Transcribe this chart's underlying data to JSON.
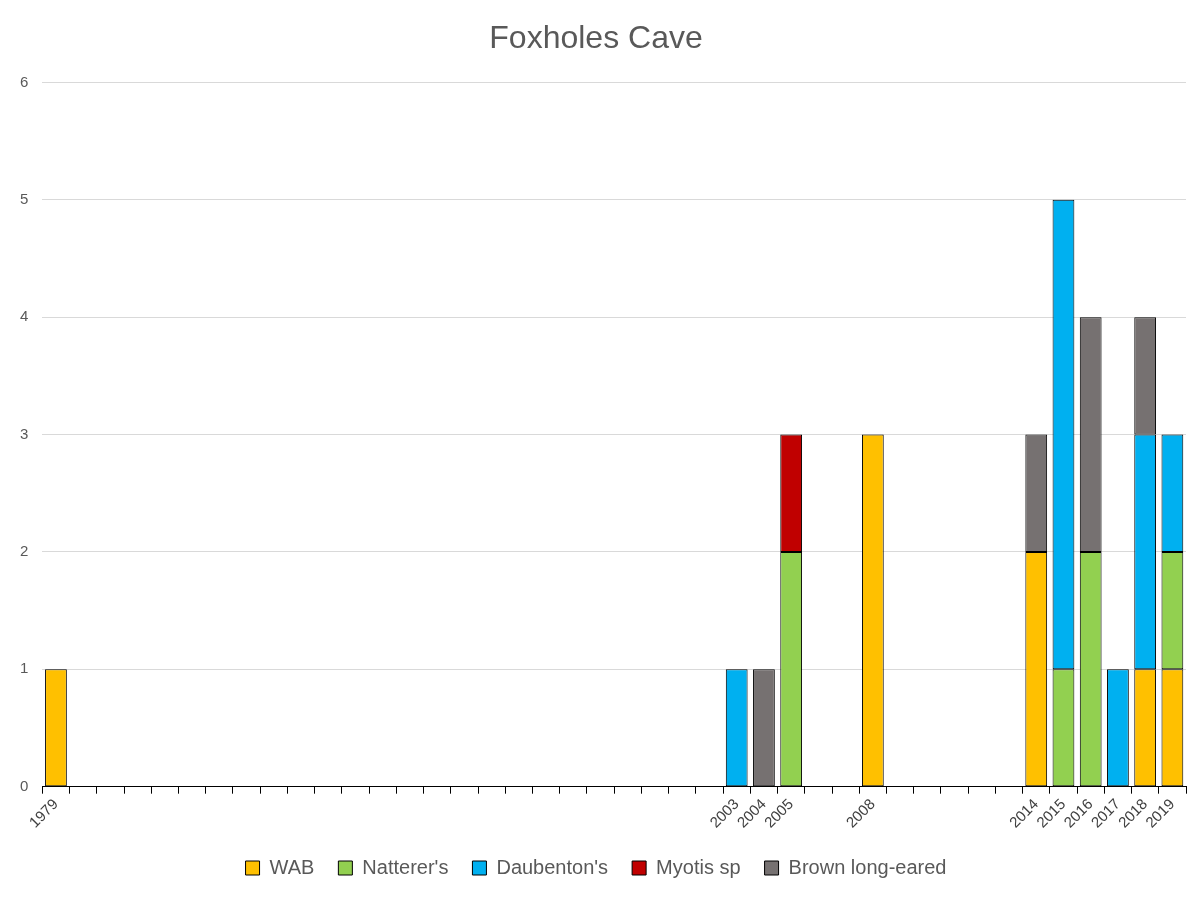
{
  "chart_data": {
    "type": "bar",
    "title": "Foxholes Cave",
    "stacked": true,
    "grid": "y",
    "legend": "bottom",
    "categories": [
      "1979",
      null,
      null,
      null,
      null,
      null,
      null,
      null,
      null,
      null,
      null,
      null,
      null,
      null,
      null,
      null,
      null,
      null,
      null,
      null,
      null,
      null,
      null,
      null,
      null,
      "2003",
      "2004",
      "2005",
      null,
      null,
      "2008",
      null,
      null,
      null,
      null,
      null,
      "2014",
      "2015",
      "2016",
      "2017",
      "2018",
      "2019"
    ],
    "ylim": [
      0,
      6
    ],
    "yticks": [
      0,
      1,
      2,
      3,
      4,
      5,
      6
    ],
    "series": [
      {
        "name": "WAB",
        "color": "#ffc000",
        "values": [
          1,
          null,
          null,
          null,
          null,
          null,
          null,
          null,
          null,
          null,
          null,
          null,
          null,
          null,
          null,
          null,
          null,
          null,
          null,
          null,
          null,
          null,
          null,
          null,
          null,
          null,
          null,
          null,
          null,
          null,
          3,
          null,
          null,
          null,
          null,
          null,
          2,
          null,
          null,
          null,
          1,
          1
        ]
      },
      {
        "name": "Natterer's",
        "color": "#92d050",
        "values": [
          null,
          null,
          null,
          null,
          null,
          null,
          null,
          null,
          null,
          null,
          null,
          null,
          null,
          null,
          null,
          null,
          null,
          null,
          null,
          null,
          null,
          null,
          null,
          null,
          null,
          null,
          null,
          2,
          null,
          null,
          null,
          null,
          null,
          null,
          null,
          null,
          null,
          1,
          2,
          null,
          null,
          1
        ]
      },
      {
        "name": "Daubenton's",
        "color": "#00b0f0",
        "values": [
          null,
          null,
          null,
          null,
          null,
          null,
          null,
          null,
          null,
          null,
          null,
          null,
          null,
          null,
          null,
          null,
          null,
          null,
          null,
          null,
          null,
          null,
          null,
          null,
          null,
          1,
          null,
          null,
          null,
          null,
          null,
          null,
          null,
          null,
          null,
          null,
          null,
          4,
          null,
          1,
          2,
          1
        ]
      },
      {
        "name": "Myotis sp",
        "color": "#c00000",
        "values": [
          null,
          null,
          null,
          null,
          null,
          null,
          null,
          null,
          null,
          null,
          null,
          null,
          null,
          null,
          null,
          null,
          null,
          null,
          null,
          null,
          null,
          null,
          null,
          null,
          null,
          null,
          null,
          1,
          null,
          null,
          null,
          null,
          null,
          null,
          null,
          null,
          null,
          null,
          null,
          null,
          null,
          null
        ]
      },
      {
        "name": "Brown long-eared",
        "color": "#767171",
        "values": [
          null,
          null,
          null,
          null,
          null,
          null,
          null,
          null,
          null,
          null,
          null,
          null,
          null,
          null,
          null,
          null,
          null,
          null,
          null,
          null,
          null,
          null,
          null,
          null,
          null,
          null,
          1,
          null,
          null,
          null,
          null,
          null,
          null,
          null,
          null,
          null,
          1,
          null,
          2,
          null,
          1,
          null
        ]
      }
    ]
  }
}
